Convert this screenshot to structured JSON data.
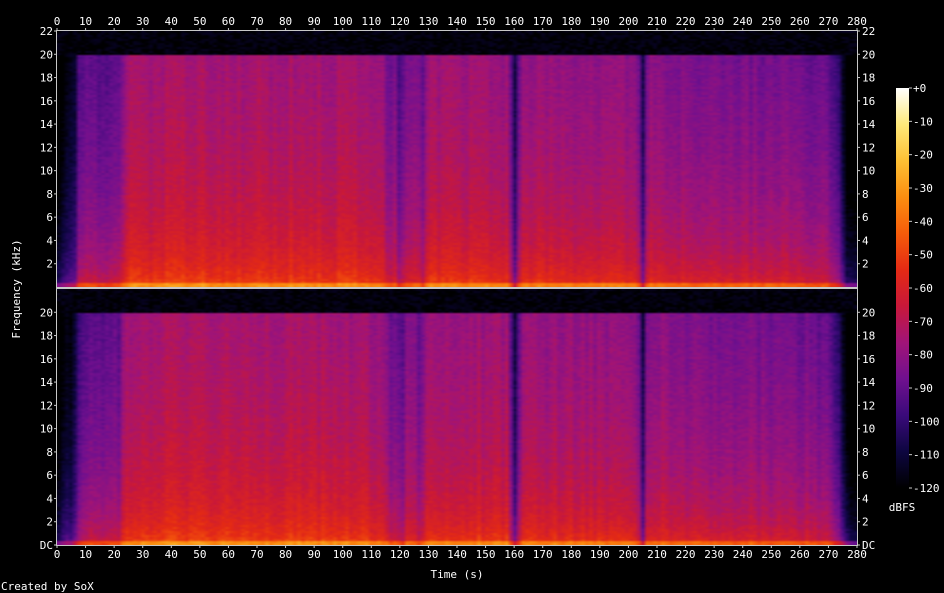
{
  "chart_data": {
    "type": "heatmap",
    "subtype": "spectrogram",
    "title": "",
    "xlabel": "Time (s)",
    "ylabel": "Frequency (kHz)",
    "xlim": [
      0,
      280
    ],
    "ylim": [
      0,
      22
    ],
    "x_ticks": [
      "0",
      "10",
      "20",
      "30",
      "40",
      "50",
      "60",
      "70",
      "80",
      "90",
      "100",
      "110",
      "120",
      "130",
      "140",
      "150",
      "160",
      "170",
      "180",
      "190",
      "200",
      "210",
      "220",
      "230",
      "240",
      "250",
      "260",
      "270",
      "280"
    ],
    "channels": [
      {
        "y_ticks": [
          "2",
          "4",
          "6",
          "8",
          "10",
          "12",
          "14",
          "16",
          "18",
          "20",
          "22"
        ],
        "y_ticks_right": [
          "2",
          "4",
          "6",
          "8",
          "10",
          "12",
          "14",
          "16",
          "18",
          "20",
          "22"
        ]
      },
      {
        "y_ticks": [
          "DC",
          "2",
          "4",
          "6",
          "8",
          "10",
          "12",
          "14",
          "16",
          "18",
          "20"
        ],
        "y_ticks_right": [
          "DC",
          "2",
          "4",
          "6",
          "8",
          "10",
          "12",
          "14",
          "16",
          "18",
          "20"
        ]
      }
    ],
    "colorbar": {
      "label": "dBFS",
      "ticks": [
        "+0",
        "-10",
        "-20",
        "-30",
        "-40",
        "-50",
        "-60",
        "-70",
        "-80",
        "-90",
        "-100",
        "-110",
        "-120"
      ],
      "range": [
        -120,
        0
      ],
      "colors": [
        "#000000",
        "#0d0640",
        "#3a0a7a",
        "#70108f",
        "#a01478",
        "#c8183a",
        "#e42a14",
        "#f65c0a",
        "#fb8e10",
        "#fdc034",
        "#fee97a",
        "#ffffff"
      ]
    },
    "content_cutoff_khz": 20,
    "level_profile_db": [
      [
        0,
        -118
      ],
      [
        2,
        -108
      ],
      [
        6,
        -100
      ],
      [
        8,
        -78
      ],
      [
        22,
        -76
      ],
      [
        24,
        -62
      ],
      [
        40,
        -60
      ],
      [
        100,
        -61
      ],
      [
        115,
        -64
      ],
      [
        116,
        -78
      ],
      [
        118,
        -70
      ],
      [
        120,
        -80
      ],
      [
        123,
        -68
      ],
      [
        128,
        -75
      ],
      [
        130,
        -62
      ],
      [
        158,
        -63
      ],
      [
        160,
        -95
      ],
      [
        163,
        -64
      ],
      [
        203,
        -66
      ],
      [
        205,
        -96
      ],
      [
        207,
        -66
      ],
      [
        232,
        -72
      ],
      [
        236,
        -70
      ],
      [
        270,
        -74
      ],
      [
        274,
        -88
      ],
      [
        276,
        -110
      ],
      [
        280,
        -118
      ]
    ],
    "footer": "Created by SoX"
  }
}
